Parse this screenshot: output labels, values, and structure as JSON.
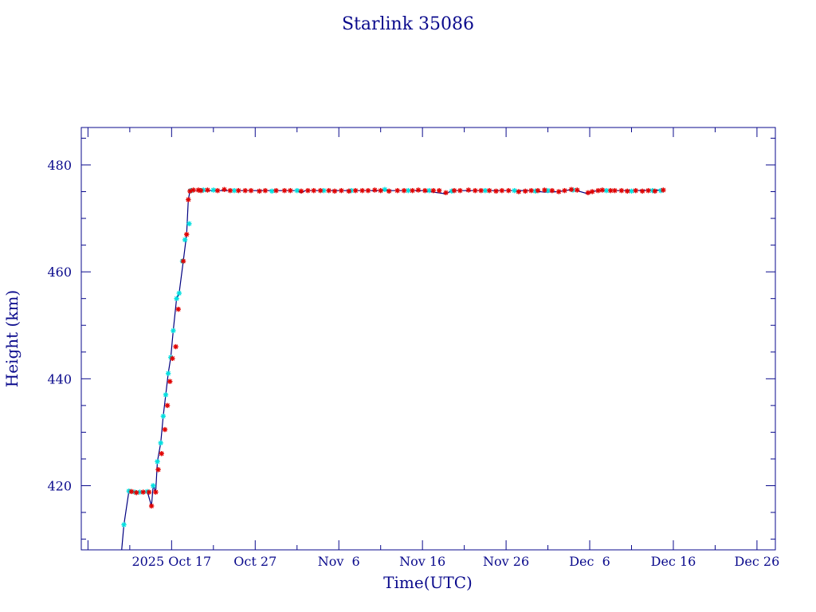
{
  "chart_data": {
    "type": "scatter",
    "title": "Starlink 35086",
    "xlabel": "Time(UTC)",
    "ylabel": "Height (km)",
    "x_unit": "days since 2025-10-07",
    "xlim": [
      -0.8,
      82.2
    ],
    "ylim": [
      408,
      487
    ],
    "x_ticks": [
      {
        "value": 10,
        "label": "2025 Oct 17"
      },
      {
        "value": 20,
        "label": "Oct 27"
      },
      {
        "value": 30,
        "label": "Nov  6"
      },
      {
        "value": 40,
        "label": "Nov 16"
      },
      {
        "value": 50,
        "label": "Nov 26"
      },
      {
        "value": 60,
        "label": "Dec  6"
      },
      {
        "value": 70,
        "label": "Dec 16"
      },
      {
        "value": 80,
        "label": "Dec 26"
      }
    ],
    "y_ticks": [
      {
        "value": 420,
        "label": "420"
      },
      {
        "value": 440,
        "label": "440"
      },
      {
        "value": 460,
        "label": "460"
      },
      {
        "value": 480,
        "label": "480"
      }
    ],
    "grid": false,
    "colors": {
      "axes": "#0a0a8c",
      "line": "#000080",
      "series_red": "#e00000",
      "series_cyan": "#00e0e0"
    },
    "series": [
      {
        "marker": "star",
        "color": "#00e0e0",
        "x": [
          4.3,
          4.9,
          5.6,
          6.2,
          7.1,
          7.8,
          8.3,
          8.7,
          9.0,
          9.3,
          9.6,
          9.9,
          10.2,
          10.6,
          10.9,
          11.3,
          11.6,
          12.1,
          12.3,
          13.8,
          15.0,
          17.5,
          22.0,
          25.0,
          28.2,
          31.5,
          35.5,
          38.3,
          40.8,
          43.5,
          47.5,
          51.0,
          53.5,
          55.0,
          58.0,
          62.0,
          65.0,
          67.5,
          68.5
        ],
        "y": [
          412.7,
          419.0,
          418.8,
          418.8,
          418.9,
          420.0,
          424.5,
          428.0,
          433.0,
          437.0,
          441.0,
          444.0,
          449.0,
          455.0,
          456.0,
          462.0,
          466.0,
          469.0,
          475.2,
          475.3,
          475.3,
          475.2,
          475.1,
          475.2,
          475.2,
          475.2,
          475.4,
          475.2,
          475.2,
          475.1,
          475.2,
          475.2,
          475.1,
          475.2,
          475.3,
          475.2,
          475.1,
          475.2,
          475.2
        ]
      },
      {
        "marker": "star",
        "color": "#e00000",
        "x": [
          5.2,
          5.8,
          6.6,
          7.3,
          7.6,
          8.1,
          8.4,
          8.8,
          9.2,
          9.5,
          9.8,
          10.1,
          10.5,
          10.8,
          11.4,
          11.8,
          12.0,
          12.2,
          12.6,
          13.2,
          13.5,
          14.3,
          15.5,
          16.3,
          17.0,
          18.0,
          18.8,
          19.5,
          20.5,
          21.2,
          22.5,
          23.5,
          24.2,
          25.5,
          26.3,
          27.0,
          27.8,
          28.8,
          29.5,
          30.3,
          31.2,
          32.0,
          32.8,
          33.5,
          34.3,
          35.0,
          36.0,
          37.0,
          37.8,
          38.8,
          39.5,
          40.3,
          41.3,
          42.0,
          42.8,
          43.8,
          44.5,
          45.5,
          46.3,
          47.0,
          48.0,
          48.8,
          49.5,
          50.3,
          51.5,
          52.3,
          53.0,
          53.8,
          54.6,
          55.5,
          56.3,
          57.0,
          57.8,
          58.5,
          59.8,
          60.3,
          61.0,
          61.5,
          62.5,
          63.0,
          63.8,
          64.5,
          65.5,
          66.3,
          67.0,
          67.8,
          68.8
        ],
        "y": [
          418.9,
          418.7,
          418.8,
          418.8,
          416.2,
          418.8,
          423.0,
          426.0,
          430.5,
          435.0,
          439.5,
          443.8,
          446.0,
          453.0,
          462.0,
          467.0,
          473.5,
          475.1,
          475.3,
          475.3,
          475.2,
          475.3,
          475.2,
          475.4,
          475.2,
          475.2,
          475.2,
          475.2,
          475.1,
          475.2,
          475.2,
          475.2,
          475.2,
          475.1,
          475.2,
          475.2,
          475.2,
          475.2,
          475.1,
          475.2,
          475.1,
          475.2,
          475.2,
          475.2,
          475.3,
          475.2,
          475.1,
          475.2,
          475.2,
          475.2,
          475.3,
          475.2,
          475.2,
          475.2,
          474.8,
          475.2,
          475.2,
          475.3,
          475.2,
          475.2,
          475.2,
          475.1,
          475.2,
          475.2,
          475.0,
          475.1,
          475.2,
          475.2,
          475.3,
          475.2,
          475.0,
          475.2,
          475.4,
          475.3,
          474.8,
          475.0,
          475.2,
          475.3,
          475.2,
          475.2,
          475.2,
          475.1,
          475.2,
          475.1,
          475.2,
          475.1,
          475.3
        ]
      }
    ],
    "line": {
      "color": "#000080",
      "x": [
        4.0,
        4.3,
        4.9,
        5.6,
        6.2,
        7.1,
        7.6,
        7.8,
        8.1,
        8.3,
        8.7,
        9.0,
        9.3,
        9.6,
        9.9,
        10.2,
        10.6,
        10.9,
        11.4,
        11.8,
        12.0,
        12.2,
        12.6,
        15.0,
        20.0,
        25.0,
        25.5,
        26.0,
        30.0,
        35.0,
        40.0,
        42.8,
        43.5,
        45.0,
        50.0,
        53.0,
        54.6,
        56.3,
        57.0,
        58.0,
        59.8,
        60.3,
        61.0,
        65.0,
        68.8
      ],
      "y": [
        407.5,
        412.7,
        419.0,
        418.8,
        418.8,
        418.9,
        416.2,
        420.0,
        418.8,
        424.5,
        428.0,
        433.0,
        437.0,
        441.0,
        444.0,
        449.0,
        455.0,
        456.0,
        462.0,
        467.0,
        473.5,
        475.1,
        475.3,
        475.2,
        475.2,
        475.2,
        474.8,
        475.2,
        475.2,
        475.2,
        475.2,
        474.6,
        475.2,
        475.2,
        475.2,
        475.2,
        474.9,
        475.0,
        475.2,
        475.4,
        474.6,
        475.0,
        475.2,
        475.2,
        475.3
      ]
    }
  }
}
